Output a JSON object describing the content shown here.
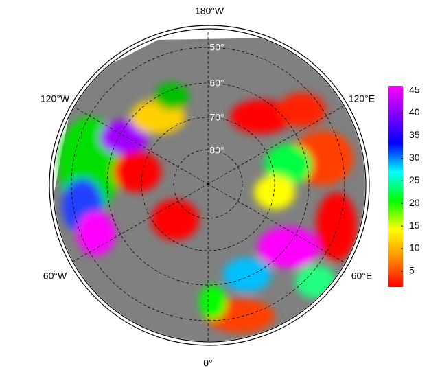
{
  "map": {
    "meridian_labels": {
      "top": "180°W",
      "upper_left": "120°W",
      "upper_right": "120°E",
      "lower_left": "60°W",
      "lower_right": "60°E",
      "bottom": "0°"
    },
    "latitude_labels": [
      "50°",
      "60°",
      "70°",
      "80°"
    ],
    "colorbar": {
      "lim": [
        1.5,
        46
      ],
      "ticks": [
        5,
        10,
        15,
        20,
        25,
        30,
        35,
        40,
        45
      ],
      "colors": [
        "#ff0000",
        "#ff8c00",
        "#ffff00",
        "#00ff00",
        "#00ffff",
        "#0000ff",
        "#8000ff",
        "#ff00ff"
      ]
    }
  }
}
